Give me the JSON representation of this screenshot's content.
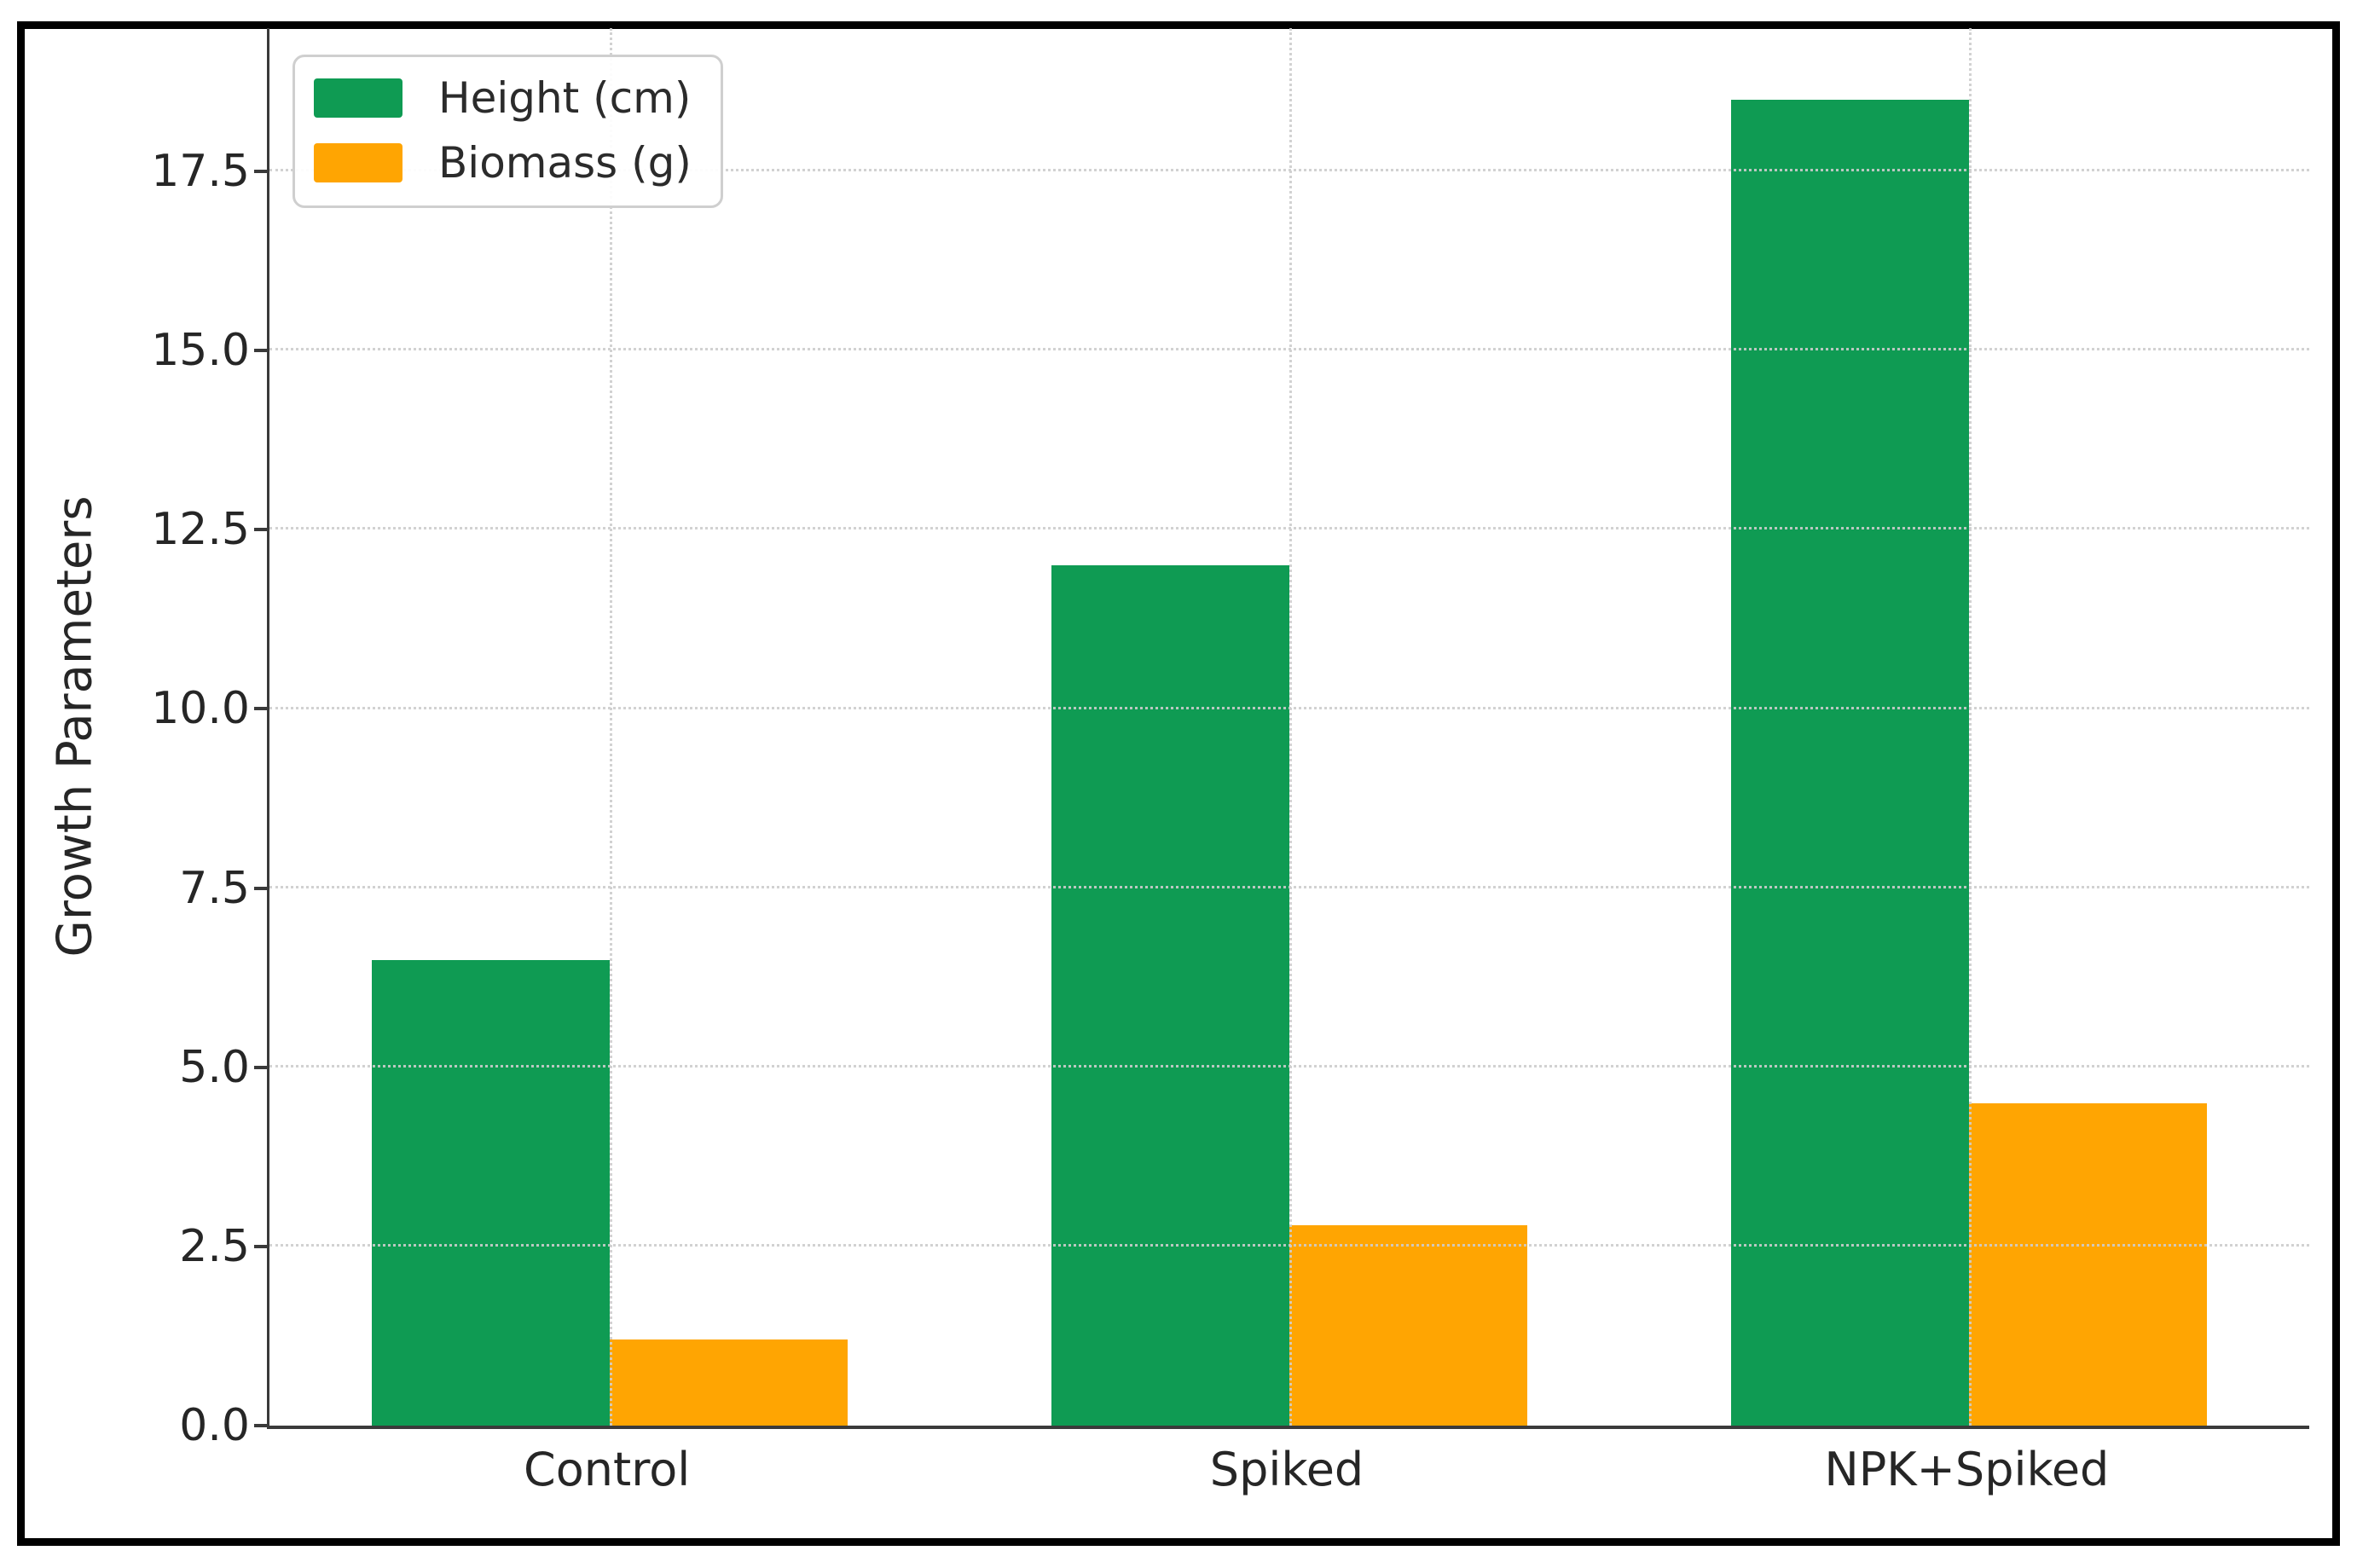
{
  "figure": {
    "background_color": "#ffffff",
    "frame_color": "#000000",
    "text_color": "#262626",
    "spine_color": "#3a3a3a",
    "gridline_color": "#cdcdcd"
  },
  "chart_data": {
    "type": "bar",
    "title": "",
    "xlabel": "",
    "ylabel": "Growth Parameters",
    "categories": [
      "Control",
      "Spiked",
      "NPK+Spiked"
    ],
    "series": [
      {
        "name": "Height (cm)",
        "color": "#0f9b53",
        "values": [
          6.5,
          12.0,
          18.5
        ]
      },
      {
        "name": "Biomass (g)",
        "color": "#ffa502",
        "values": [
          1.2,
          2.8,
          4.5
        ]
      }
    ],
    "ylim": [
      0,
      19.5
    ],
    "yticks": {
      "values": [
        0,
        2.5,
        5,
        7.5,
        10,
        12.5,
        15,
        17.5
      ],
      "labels": [
        "0.0",
        "2.5",
        "5.0",
        "7.5",
        "10.0",
        "12.5",
        "15.0",
        "17.5"
      ]
    },
    "grid": true,
    "grid_style": "dotted",
    "bar_width": 0.35,
    "legend": {
      "position": "upper-left",
      "entries": [
        "Height (cm)",
        "Biomass (g)"
      ]
    }
  }
}
